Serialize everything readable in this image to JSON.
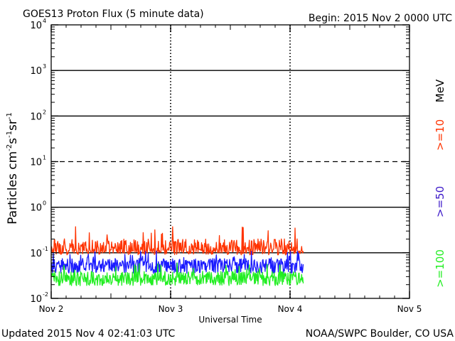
{
  "header": {
    "title": "GOES13 Proton Flux (5 minute data)",
    "begin": "Begin: 2015 Nov 2 0000 UTC"
  },
  "footer": {
    "updated": "Updated 2015 Nov  4 02:41:03 UTC",
    "credit": "NOAA/SWPC Boulder, CO USA"
  },
  "chart_data": {
    "type": "line",
    "title": "GOES13 Proton Flux (5 minute data)",
    "xlabel": "Universal Time",
    "ylabel": "Particles cm-2s-1sr-1",
    "ylabel_parts": [
      "Particles cm",
      "-2",
      "s",
      "-1",
      "sr",
      "-1"
    ],
    "yscale": "log",
    "ylim": [
      0.01,
      10000
    ],
    "y_ticks": [
      {
        "base": "10",
        "exp": "4",
        "value": 10000
      },
      {
        "base": "10",
        "exp": "3",
        "value": 1000
      },
      {
        "base": "10",
        "exp": "2",
        "value": 100
      },
      {
        "base": "10",
        "exp": "1",
        "value": 10
      },
      {
        "base": "10",
        "exp": "0",
        "value": 1
      },
      {
        "base": "10",
        "exp": "-1",
        "value": 0.1
      },
      {
        "base": "10",
        "exp": "-2",
        "value": 0.01
      }
    ],
    "xlim_days": [
      0,
      3
    ],
    "x_ticks": [
      {
        "label": "Nov 2",
        "day": 0
      },
      {
        "label": "Nov 3",
        "day": 1
      },
      {
        "label": "Nov 4",
        "day": 2
      },
      {
        "label": "Nov 5",
        "day": 3
      }
    ],
    "data_end_day": 2.11,
    "threshold_lines": [
      {
        "value": 1000,
        "style": "solid"
      },
      {
        "value": 100,
        "style": "solid"
      },
      {
        "value": 10,
        "style": "dashed"
      },
      {
        "value": 1,
        "style": "solid"
      },
      {
        "value": 0.1,
        "style": "solid"
      }
    ],
    "series": [
      {
        "name": ">=10",
        "color": "#ff3300",
        "typical": 0.12,
        "min": 0.09,
        "max": 0.38
      },
      {
        "name": ">=50",
        "color": "#1a1aff",
        "typical": 0.055,
        "min": 0.035,
        "max": 0.11
      },
      {
        "name": ">=100",
        "color": "#22ee22",
        "typical": 0.028,
        "min": 0.019,
        "max": 0.06
      }
    ],
    "legend": {
      "unit": "MeV",
      "position": "right"
    }
  }
}
